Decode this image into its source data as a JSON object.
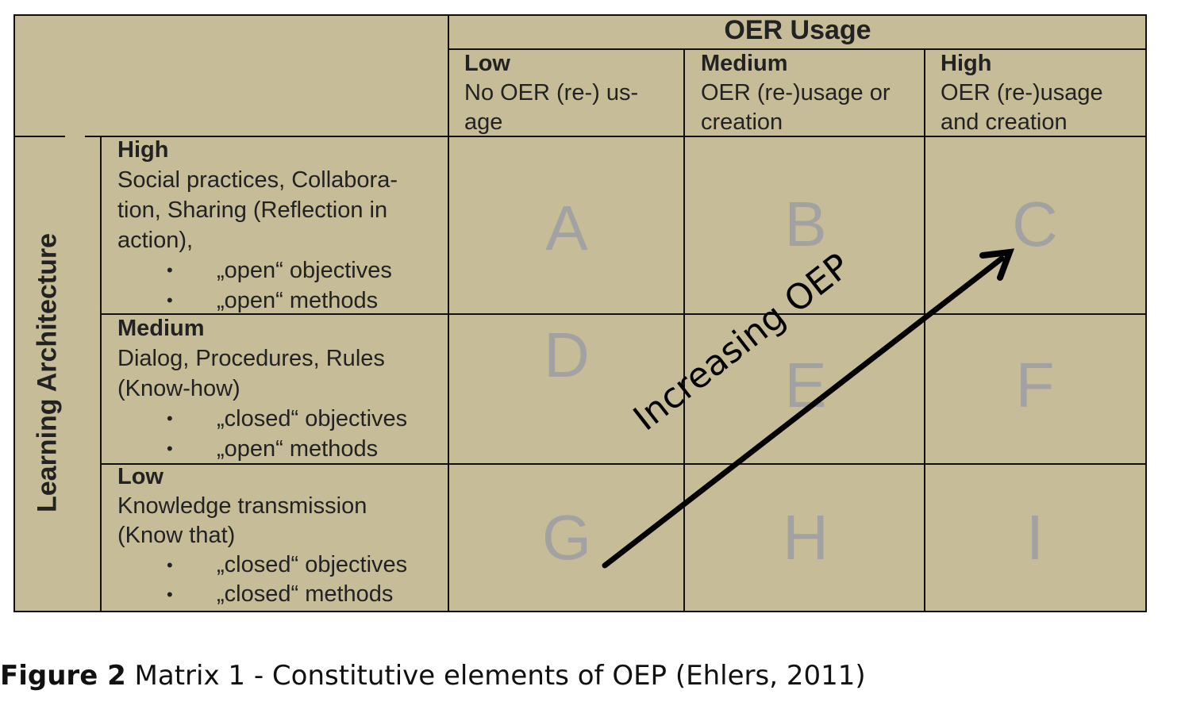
{
  "column_axis": {
    "title": "OER Usage",
    "levels": [
      {
        "label": "Low",
        "desc": [
          "No OER (re-) us-",
          "age"
        ]
      },
      {
        "label": "Medium",
        "desc": [
          "OER (re-)usage  or",
          "creation"
        ]
      },
      {
        "label": "High",
        "desc": [
          "OER (re-)usage",
          "and creation"
        ]
      }
    ]
  },
  "row_axis": {
    "title": "Learning Architecture",
    "levels": [
      {
        "label": "High",
        "desc": [
          "Social practices, Collabora-",
          "tion, Sharing (Reflection in",
          "action),"
        ],
        "bullets": [
          "„open“ objectives",
          "„open“ methods"
        ]
      },
      {
        "label": "Medium",
        "desc": [
          "Dialog, Procedures, Rules",
          "(Know-how)"
        ],
        "bullets": [
          "„closed“ objectives",
          "„open“ methods"
        ]
      },
      {
        "label": "Low",
        "desc": [
          "Knowledge transmission",
          "(Know that)"
        ],
        "bullets": [
          "„closed“ objectives",
          "„closed“ methods"
        ]
      }
    ]
  },
  "cells": [
    "A",
    "B",
    "C",
    "D",
    "E",
    "F",
    "G",
    "H",
    "I"
  ],
  "arrow": {
    "label": "Increasing OEP",
    "from": "G",
    "to": "C"
  },
  "caption": {
    "label": "Figure 2",
    "text": " Matrix 1 - Constitutive elements of OEP (Ehlers, 2011)"
  },
  "colors": {
    "background": "#c6bd98",
    "cell_letters": "#a2a2a2",
    "lines": "#111111"
  }
}
